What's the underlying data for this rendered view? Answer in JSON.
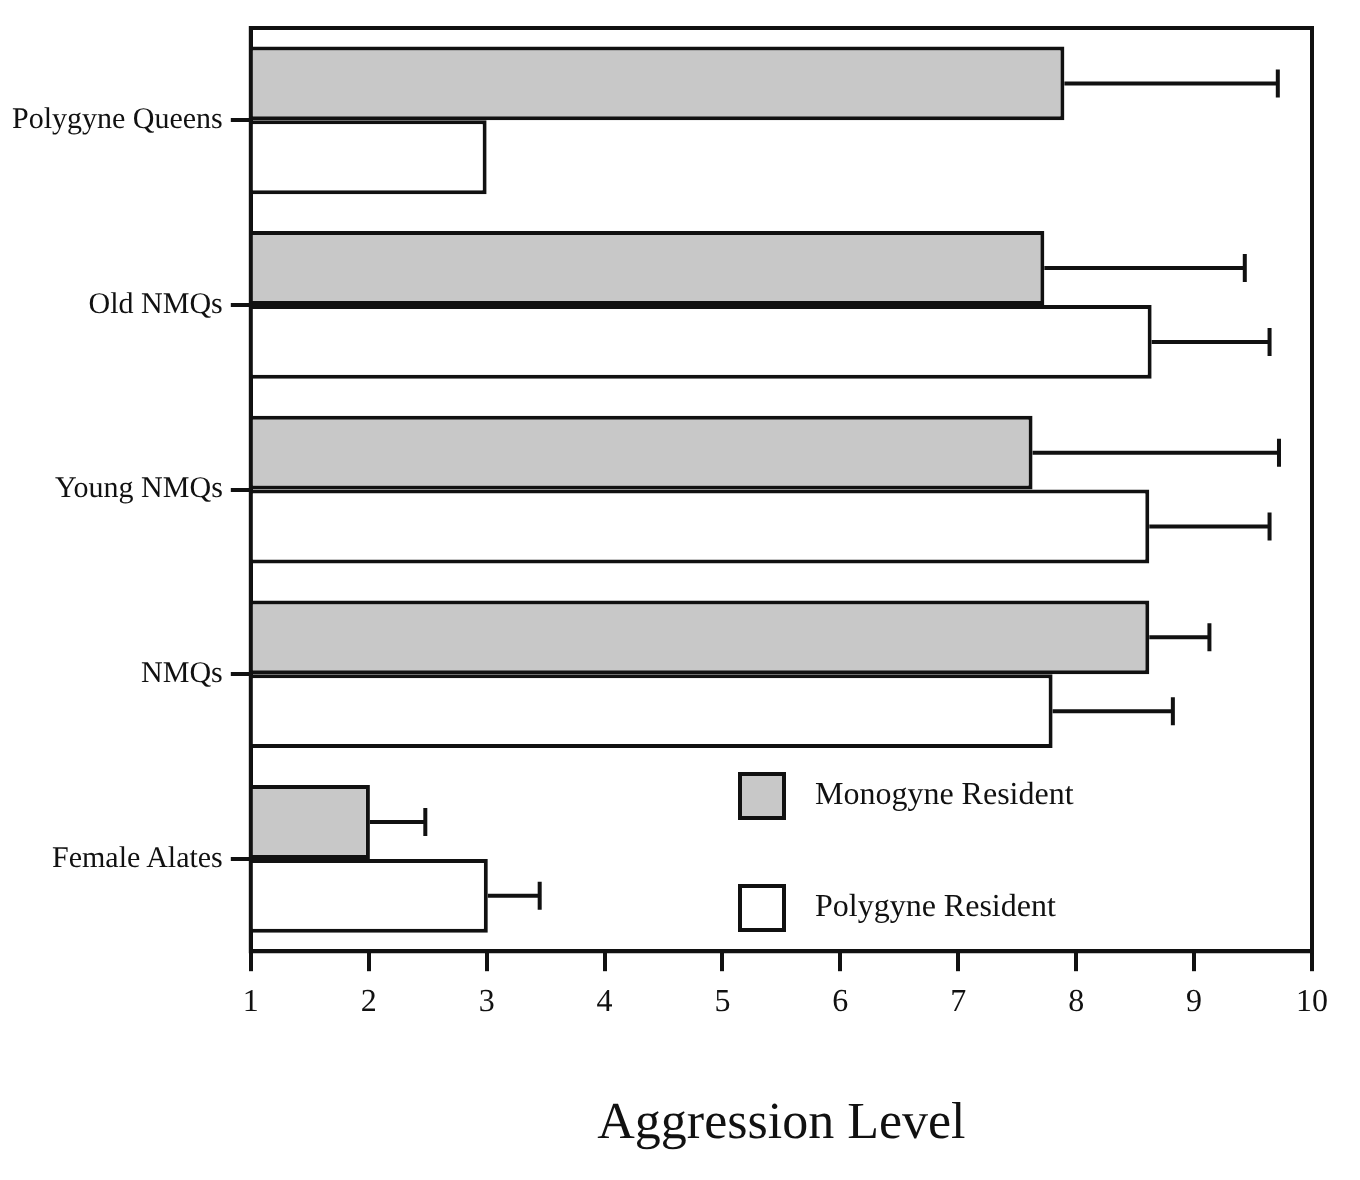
{
  "chart_data": {
    "type": "bar",
    "orientation": "horizontal",
    "xlabel": "Aggression Level",
    "categories": [
      "Polygyne Queens",
      "Old NMQs",
      "Young NMQs",
      "NMQs",
      "Female Alates"
    ],
    "xlim": [
      1,
      10
    ],
    "xticks": [
      1,
      2,
      3,
      4,
      5,
      6,
      7,
      8,
      9,
      10
    ],
    "grid": false,
    "legend": "bottom right",
    "series": [
      {
        "name": "Monogyne Resident",
        "color": "#c8c8c8",
        "values": [
          7.9,
          7.73,
          7.63,
          8.62,
          2.01
        ],
        "errors": [
          [
            7.9,
            9.71
          ],
          [
            7.73,
            9.43
          ],
          [
            7.63,
            9.72
          ],
          [
            8.62,
            9.13
          ],
          [
            2.01,
            2.48
          ]
        ]
      },
      {
        "name": "Polygyne Resident",
        "color": "#ffffff",
        "values": [
          3.0,
          8.64,
          8.62,
          7.8,
          3.01
        ],
        "errors": [
          null,
          [
            8.64,
            9.64
          ],
          [
            8.62,
            9.64
          ],
          [
            7.8,
            8.82
          ],
          [
            3.01,
            3.45
          ]
        ]
      }
    ]
  }
}
